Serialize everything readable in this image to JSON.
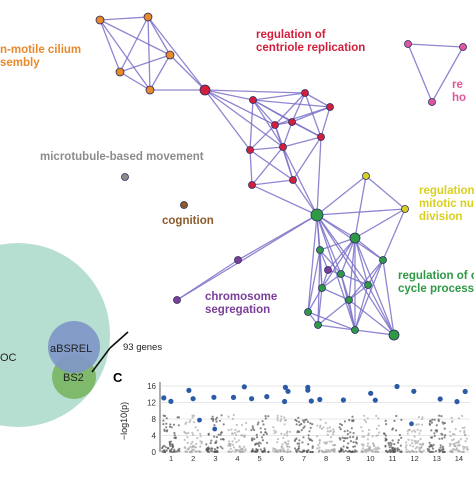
{
  "network": {
    "labels": {
      "cilium": [
        "n-motile cilium",
        "sembly"
      ],
      "centriole": [
        "regulation of",
        "centriole replication"
      ],
      "pink": [
        "re",
        "ho"
      ],
      "microtubule": "microtubule-based movement",
      "cognition": "cognition",
      "mitotic": [
        "regulation",
        "mitotic nu",
        "division"
      ],
      "chromosome": [
        "chromosome",
        "segregation"
      ],
      "cellcycle": [
        "regulation of c",
        "cycle process"
      ]
    },
    "colors": {
      "cilium": "#e8892a",
      "centriole": "#d21f3c",
      "pink": "#e0569a",
      "microtubule": "#8c8c8c",
      "cognition": "#8b5a2b",
      "mitotic": "#d8d020",
      "chromosome": "#7a3f98",
      "cellcycle": "#2e9a46",
      "edge": "#7b72c8"
    }
  },
  "venn": {
    "left_label": "OC",
    "absrel_label": "aBSREL",
    "bs2_label": "BS2",
    "genes_label": "93 genes"
  },
  "manhattan": {
    "panel_letter": "C",
    "ylabel": "−log10(p)",
    "yticks": [
      "16",
      "12",
      "8",
      "4",
      "0"
    ],
    "xticks": [
      "1",
      "2",
      "3",
      "4",
      "5",
      "6",
      "7",
      "8",
      "9",
      "10",
      "11",
      "12",
      "13",
      "14"
    ],
    "point_color": "#2b5aa6"
  }
}
